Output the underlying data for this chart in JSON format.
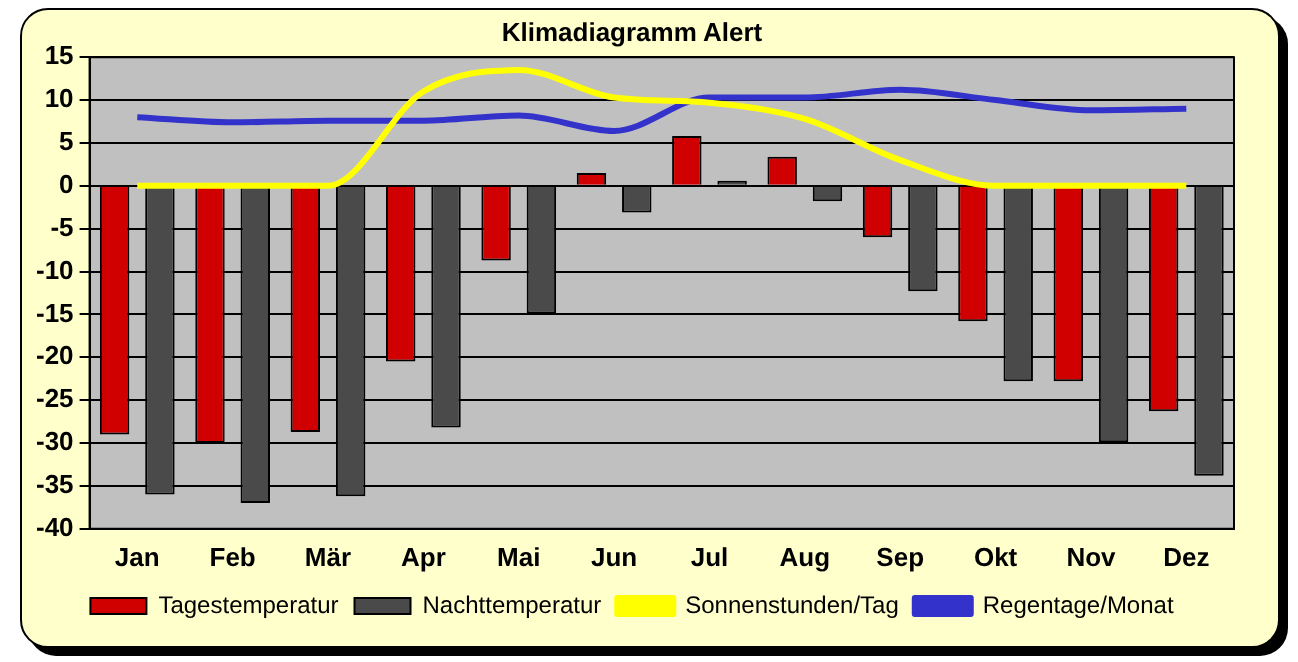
{
  "chart_data": {
    "type": "bar",
    "title": "Klimadiagramm Alert",
    "categories": [
      "Jan",
      "Feb",
      "Mär",
      "Apr",
      "Mai",
      "Jun",
      "Jul",
      "Aug",
      "Sep",
      "Okt",
      "Nov",
      "Dez"
    ],
    "series": [
      {
        "name": "Tagestemperatur",
        "color": "#d00000",
        "values": [
          -29,
          -30,
          -28.7,
          -20.5,
          -8.7,
          1.5,
          5.8,
          3.4,
          -6,
          -15.8,
          -22.8,
          -26.3
        ]
      },
      {
        "name": "Nachttemperatur",
        "color": "#4a4a4a",
        "values": [
          -36,
          -37,
          -36.2,
          -28.2,
          -14.9,
          -3.1,
          0.6,
          -1.8,
          -12.3,
          -22.8,
          -29.9,
          -33.8
        ]
      },
      {
        "name": "Sonnenstunden/Tag",
        "type": "line",
        "color": "#ffff00",
        "values": [
          0,
          0,
          0,
          11,
          13.5,
          10.3,
          9.7,
          7.8,
          3,
          0,
          0,
          0
        ]
      },
      {
        "name": "Regentage/Monat",
        "type": "line",
        "color": "#3333cc",
        "values": [
          8,
          7.4,
          7.6,
          7.6,
          8.2,
          6.4,
          10.3,
          10.3,
          11.2,
          10,
          8.8,
          9
        ]
      }
    ],
    "ylim": [
      -40,
      15
    ],
    "yticks": [
      -40,
      -35,
      -30,
      -25,
      -20,
      -15,
      -10,
      -5,
      0,
      5,
      10,
      15
    ],
    "grid": "y",
    "legend": "bottom",
    "marker": "none"
  }
}
